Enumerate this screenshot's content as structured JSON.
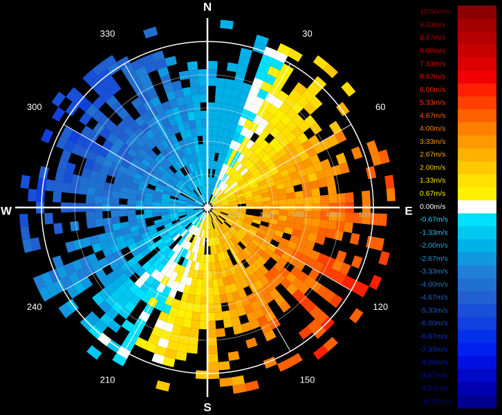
{
  "compass": [
    "N",
    "E",
    "S",
    "W"
  ],
  "azimuth_labels": [
    "30",
    "60",
    "120",
    "150",
    "210",
    "240",
    "300",
    "330"
  ],
  "range_labels": [
    "1000",
    "2000",
    "3000",
    "4000",
    "5000"
  ],
  "legend": [
    {
      "label": "10.00m/s",
      "color": "#8b0000"
    },
    {
      "label": "9.33m/s",
      "color": "#a00000"
    },
    {
      "label": "8.67m/s",
      "color": "#b40000"
    },
    {
      "label": "8.00m/s",
      "color": "#c80000"
    },
    {
      "label": "7.33m/s",
      "color": "#dc0000"
    },
    {
      "label": "6.67m/s",
      "color": "#f00000"
    },
    {
      "label": "6.00m/s",
      "color": "#ff2000"
    },
    {
      "label": "5.33m/s",
      "color": "#ff4000"
    },
    {
      "label": "4.67m/s",
      "color": "#ff6000"
    },
    {
      "label": "4.00m/s",
      "color": "#ff8000"
    },
    {
      "label": "3.33m/s",
      "color": "#ff9800"
    },
    {
      "label": "2.67m/s",
      "color": "#ffb000"
    },
    {
      "label": "2.00m/s",
      "color": "#ffc800"
    },
    {
      "label": "1.33m/s",
      "color": "#ffe000"
    },
    {
      "label": "0.67m/s",
      "color": "#fff000"
    },
    {
      "label": "0.00m/s",
      "color": "#ffffff"
    },
    {
      "label": "-0.67m/s",
      "color": "#00e0ff"
    },
    {
      "label": "-1.33m/s",
      "color": "#00c8f0"
    },
    {
      "label": "-2.00m/s",
      "color": "#00b0e8"
    },
    {
      "label": "-2.67m/s",
      "color": "#1098e0"
    },
    {
      "label": "-3.33m/s",
      "color": "#2080d8"
    },
    {
      "label": "-4.00m/s",
      "color": "#2070d0"
    },
    {
      "label": "-4.67m/s",
      "color": "#2060d0"
    },
    {
      "label": "-5.33m/s",
      "color": "#1850d8"
    },
    {
      "label": "-6.00m/s",
      "color": "#1040e0"
    },
    {
      "label": "-6.67m/s",
      "color": "#0030e8"
    },
    {
      "label": "-7.33m/s",
      "color": "#0020f0"
    },
    {
      "label": "-8.00m/s",
      "color": "#0010e0"
    },
    {
      "label": "-8.67m/s",
      "color": "#0008c8"
    },
    {
      "label": "-9.33m/s",
      "color": "#0000b0"
    },
    {
      "label": "-10.00m/s",
      "color": "#000090"
    }
  ]
}
